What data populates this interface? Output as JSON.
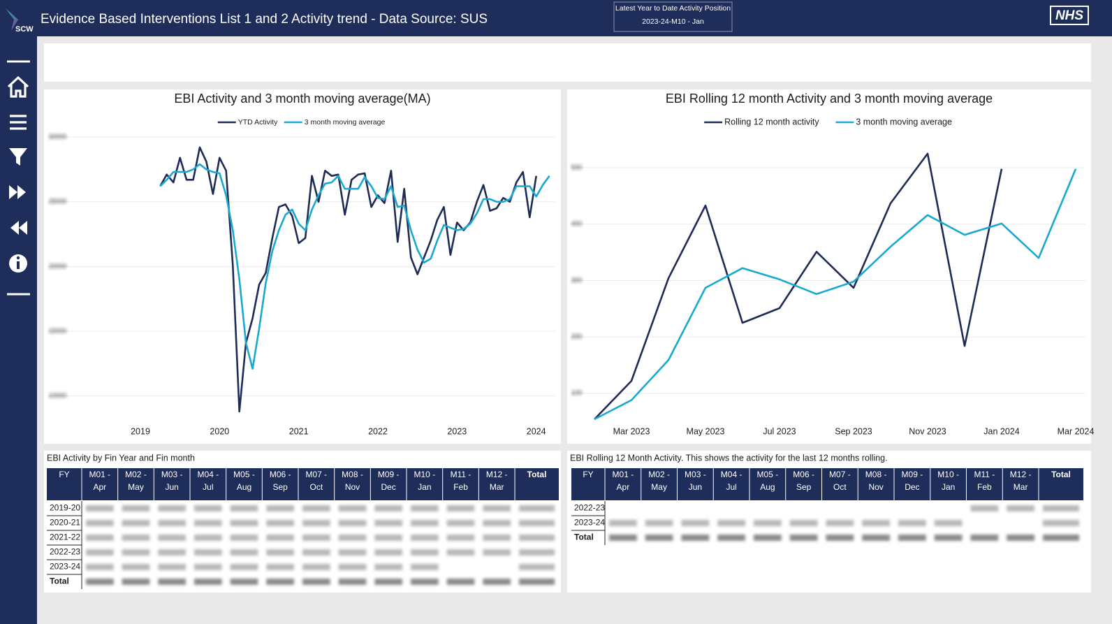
{
  "header": {
    "logo": "SCW",
    "title": "Evidence Based Interventions List 1 and 2 Activity trend - Data Source: SUS",
    "position_label": "Latest Year to Date Activity Position",
    "position_value": "2023-24-M10 - Jan",
    "badge": "NHS"
  },
  "chart_data": [
    {
      "type": "line",
      "title": "EBI Activity and 3 month moving average(MA)",
      "x": [
        2019.25,
        2019.333,
        2019.417,
        2019.5,
        2019.583,
        2019.667,
        2019.75,
        2019.833,
        2019.917,
        2020,
        2020.083,
        2020.167,
        2020.25,
        2020.333,
        2020.417,
        2020.5,
        2020.583,
        2020.667,
        2020.75,
        2020.833,
        2020.917,
        2021,
        2021.083,
        2021.167,
        2021.25,
        2021.333,
        2021.417,
        2021.5,
        2021.583,
        2021.667,
        2021.75,
        2021.833,
        2021.917,
        2022,
        2022.083,
        2022.167,
        2022.25,
        2022.333,
        2022.417,
        2022.5,
        2022.583,
        2022.667,
        2022.75,
        2022.833,
        2022.917,
        2023,
        2023.083,
        2023.167,
        2023.25,
        2023.333,
        2023.417,
        2023.5,
        2023.583,
        2023.667,
        2023.75,
        2023.833,
        2023.917,
        2024,
        2024.083,
        2024.167
      ],
      "xlim": [
        2018.7,
        2024.25
      ],
      "xticks": [
        2019,
        2020,
        2021,
        2022,
        2023,
        2024
      ],
      "ylim": [
        8200,
        30600
      ],
      "yticks": [
        10000,
        15000,
        20000,
        25000,
        30000
      ],
      "grid": true,
      "series": [
        {
          "name": "YTD Activity",
          "color": "#1e2b55",
          "values": [
            26200,
            27100,
            26500,
            28400,
            26700,
            26700,
            29200,
            28100,
            25600,
            28400,
            27400,
            20100,
            8800,
            14100,
            16000,
            18600,
            19500,
            22200,
            24600,
            24800,
            23900,
            21800,
            22200,
            27000,
            25000,
            27400,
            27000,
            27100,
            24000,
            26700,
            27100,
            27200,
            24600,
            25500,
            24900,
            27400,
            21900,
            26000,
            20700,
            19400,
            20700,
            22000,
            23600,
            24600,
            20900,
            23400,
            22800,
            23400,
            25000,
            26300,
            24300,
            24500,
            25300,
            25000,
            26500,
            27300,
            23800,
            27000,
            null,
            null
          ]
        },
        {
          "name": "3 month moving average",
          "color": "#19a9d0",
          "values": [
            26200,
            26700,
            27300,
            27300,
            27300,
            27500,
            27900,
            27500,
            27300,
            27200,
            25500,
            22800,
            19000,
            14100,
            12100,
            15200,
            18700,
            21200,
            22800,
            24000,
            24400,
            23300,
            22800,
            24400,
            25500,
            26400,
            26500,
            27000,
            26000,
            26000,
            26000,
            26900,
            26200,
            25300,
            25200,
            26200,
            24600,
            24700,
            22800,
            21300,
            20300,
            20600,
            22000,
            23200,
            23000,
            22800,
            22900,
            23300,
            24100,
            25200,
            25200,
            25000,
            25000,
            25200,
            26200,
            26200,
            26200,
            25400,
            26300,
            27000
          ]
        }
      ]
    },
    {
      "type": "line",
      "title": "EBI Rolling 12 month Activity and 3 month moving average",
      "categories": [
        null,
        "Mar 2023",
        null,
        "May 2023",
        null,
        "Jul 2023",
        null,
        "Sep 2023",
        null,
        "Nov 2023",
        null,
        "Jan 2024",
        null,
        "Mar 2024"
      ],
      "ylim": [
        54,
        562
      ],
      "yticks": [
        100,
        200,
        300,
        400,
        500
      ],
      "grid": true,
      "series": [
        {
          "name": "Rolling 12 month activity",
          "color": "#1e2b55",
          "values": [
            54,
            122,
            304,
            433,
            225,
            251,
            351,
            287,
            437,
            525,
            184,
            498,
            null,
            null
          ]
        },
        {
          "name": "3 month moving average",
          "color": "#19a9d0",
          "values": [
            54,
            88,
            159,
            287,
            322,
            302,
            276,
            298,
            360,
            416,
            381,
            401,
            340,
            498
          ]
        }
      ]
    }
  ],
  "tables": [
    {
      "title": "EBI Activity by Fin Year and Fin month",
      "columns": [
        "FY",
        {
          "code": "M01 -",
          "month": "Apr"
        },
        {
          "code": "M02 -",
          "month": "May"
        },
        {
          "code": "M03 -",
          "month": "Jun"
        },
        {
          "code": "M04 -",
          "month": "Jul"
        },
        {
          "code": "M05 -",
          "month": "Aug"
        },
        {
          "code": "M06 -",
          "month": "Sep"
        },
        {
          "code": "M07 -",
          "month": "Oct"
        },
        {
          "code": "M08 -",
          "month": "Nov"
        },
        {
          "code": "M09 -",
          "month": "Dec"
        },
        {
          "code": "M10 -",
          "month": "Jan"
        },
        {
          "code": "M11 -",
          "month": "Feb"
        },
        {
          "code": "M12 -",
          "month": "Mar"
        },
        "Total"
      ],
      "rows": [
        "2019-20",
        "2020-21",
        "2021-22",
        "2022-23",
        "2023-24",
        "Total"
      ]
    },
    {
      "title": "EBI Rolling 12 Month Activity. This shows the activity for the last 12 months rolling.",
      "columns": [
        "FY",
        {
          "code": "M01 -",
          "month": "Apr"
        },
        {
          "code": "M02 -",
          "month": "May"
        },
        {
          "code": "M03 -",
          "month": "Jun"
        },
        {
          "code": "M04 -",
          "month": "Jul"
        },
        {
          "code": "M05 -",
          "month": "Aug"
        },
        {
          "code": "M06 -",
          "month": "Sep"
        },
        {
          "code": "M07 -",
          "month": "Oct"
        },
        {
          "code": "M08 -",
          "month": "Nov"
        },
        {
          "code": "M09 -",
          "month": "Dec"
        },
        {
          "code": "M10 -",
          "month": "Jan"
        },
        {
          "code": "M11 -",
          "month": "Feb"
        },
        {
          "code": "M12 -",
          "month": "Mar"
        },
        "Total"
      ],
      "rows": [
        "2022-23",
        "2023-24",
        "Total"
      ]
    }
  ]
}
